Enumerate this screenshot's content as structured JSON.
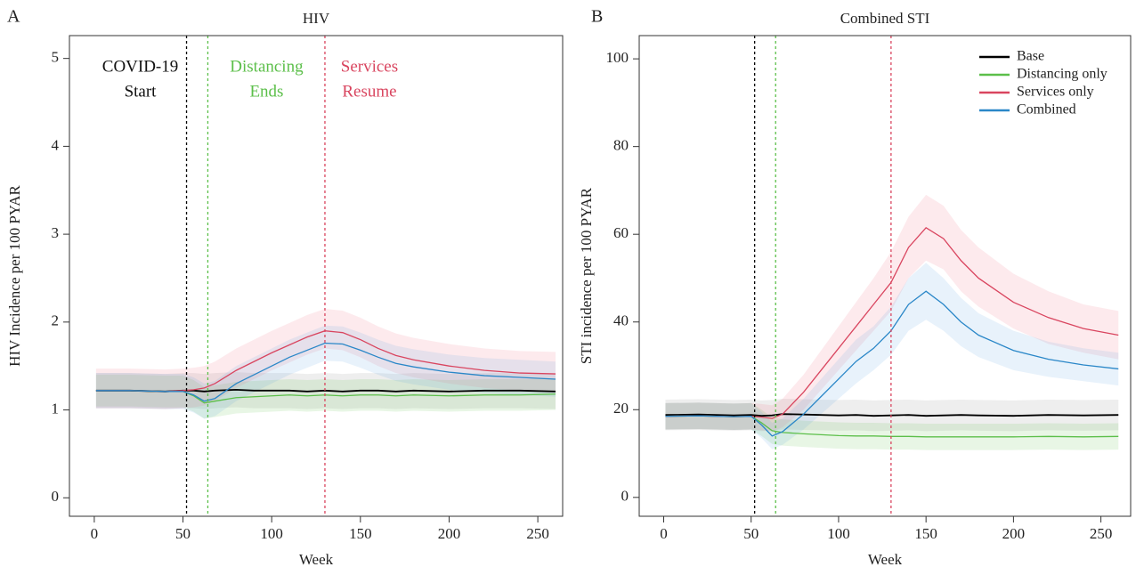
{
  "chart_data": [
    {
      "type": "line",
      "panel": "A",
      "title": "HIV",
      "xlabel": "Week",
      "ylabel": "HIV Incidence per 100 PYAR",
      "xlim": [
        -14,
        264
      ],
      "ylim": [
        -0.21,
        5.26
      ],
      "xticks": [
        0,
        50,
        100,
        150,
        200,
        250
      ],
      "yticks": [
        0,
        1,
        2,
        3,
        4,
        5
      ],
      "x": [
        1,
        20,
        40,
        50,
        56,
        62,
        68,
        80,
        90,
        100,
        110,
        120,
        130,
        140,
        150,
        160,
        170,
        180,
        200,
        220,
        240,
        260
      ],
      "series": [
        {
          "color": "#000000",
          "band_color": "#888888",
          "values": [
            1.22,
            1.22,
            1.21,
            1.22,
            1.22,
            1.21,
            1.22,
            1.23,
            1.22,
            1.22,
            1.22,
            1.21,
            1.22,
            1.21,
            1.22,
            1.22,
            1.21,
            1.22,
            1.21,
            1.22,
            1.22,
            1.21
          ],
          "lower": [
            1.02,
            1.02,
            1.01,
            1.02,
            1.02,
            1.01,
            1.02,
            1.03,
            1.02,
            1.02,
            1.02,
            1.01,
            1.02,
            1.01,
            1.02,
            1.02,
            1.01,
            1.02,
            1.01,
            1.02,
            1.02,
            1.01
          ],
          "upper": [
            1.42,
            1.42,
            1.41,
            1.42,
            1.42,
            1.41,
            1.42,
            1.43,
            1.42,
            1.42,
            1.42,
            1.41,
            1.42,
            1.41,
            1.42,
            1.42,
            1.41,
            1.42,
            1.41,
            1.42,
            1.42,
            1.41
          ]
        },
        {
          "color": "#5cbf4a",
          "band_color": "#5cbf4a",
          "values": [
            1.22,
            1.22,
            1.21,
            1.21,
            1.16,
            1.08,
            1.1,
            1.14,
            1.15,
            1.16,
            1.17,
            1.16,
            1.17,
            1.16,
            1.17,
            1.17,
            1.16,
            1.17,
            1.16,
            1.17,
            1.17,
            1.18
          ],
          "lower": [
            1.04,
            1.04,
            1.03,
            1.03,
            0.98,
            0.9,
            0.92,
            0.96,
            0.97,
            0.98,
            0.99,
            0.98,
            0.99,
            0.98,
            0.99,
            0.99,
            0.98,
            0.99,
            0.98,
            0.99,
            0.99,
            1.0
          ],
          "upper": [
            1.4,
            1.4,
            1.39,
            1.39,
            1.34,
            1.26,
            1.28,
            1.32,
            1.33,
            1.34,
            1.35,
            1.34,
            1.35,
            1.34,
            1.35,
            1.35,
            1.34,
            1.35,
            1.34,
            1.35,
            1.35,
            1.36
          ]
        },
        {
          "color": "#d9455f",
          "band_color": "#f06a80",
          "values": [
            1.22,
            1.22,
            1.21,
            1.22,
            1.23,
            1.25,
            1.3,
            1.45,
            1.55,
            1.65,
            1.74,
            1.83,
            1.9,
            1.88,
            1.8,
            1.7,
            1.62,
            1.57,
            1.5,
            1.45,
            1.42,
            1.41
          ],
          "lower": [
            1.02,
            1.02,
            1.01,
            1.02,
            1.03,
            1.05,
            1.1,
            1.25,
            1.35,
            1.45,
            1.54,
            1.63,
            1.7,
            1.68,
            1.6,
            1.5,
            1.42,
            1.37,
            1.3,
            1.25,
            1.22,
            1.21
          ],
          "upper": [
            1.47,
            1.47,
            1.46,
            1.47,
            1.48,
            1.5,
            1.55,
            1.7,
            1.8,
            1.9,
            1.99,
            2.08,
            2.15,
            2.13,
            2.05,
            1.95,
            1.87,
            1.82,
            1.75,
            1.7,
            1.67,
            1.66
          ]
        },
        {
          "color": "#2a87c8",
          "band_color": "#5aa6e0",
          "values": [
            1.22,
            1.22,
            1.21,
            1.21,
            1.17,
            1.1,
            1.13,
            1.3,
            1.4,
            1.5,
            1.6,
            1.68,
            1.76,
            1.75,
            1.68,
            1.6,
            1.53,
            1.49,
            1.43,
            1.39,
            1.37,
            1.35
          ],
          "lower": [
            1.02,
            1.02,
            1.01,
            1.01,
            0.97,
            0.9,
            0.93,
            1.1,
            1.2,
            1.3,
            1.4,
            1.48,
            1.56,
            1.55,
            1.48,
            1.4,
            1.33,
            1.29,
            1.23,
            1.19,
            1.17,
            1.15
          ],
          "upper": [
            1.42,
            1.42,
            1.41,
            1.41,
            1.37,
            1.3,
            1.33,
            1.5,
            1.6,
            1.7,
            1.8,
            1.88,
            1.96,
            1.95,
            1.88,
            1.8,
            1.73,
            1.69,
            1.63,
            1.59,
            1.57,
            1.55
          ]
        }
      ],
      "vlines": [
        {
          "x": 52,
          "color": "#000000",
          "label": [
            "COVID-19",
            "Start"
          ],
          "label_color": "#111111"
        },
        {
          "x": 64,
          "color": "#5cbf4a",
          "label": [
            "Distancing",
            "Ends"
          ],
          "label_color": "#5cbf4a"
        },
        {
          "x": 130,
          "color": "#d9455f",
          "label": [
            "Services",
            "Resume"
          ],
          "label_color": "#d9455f"
        }
      ]
    },
    {
      "type": "line",
      "panel": "B",
      "title": "Combined STI",
      "xlabel": "Week",
      "ylabel": "STI incidence per 100 PYAR",
      "xlim": [
        -14,
        267
      ],
      "ylim": [
        -4.3,
        105.3
      ],
      "xticks": [
        0,
        50,
        100,
        150,
        200,
        250
      ],
      "yticks": [
        0,
        20,
        40,
        60,
        80,
        100
      ],
      "legend": "top-right",
      "x": [
        1,
        20,
        40,
        50,
        56,
        62,
        68,
        80,
        90,
        100,
        110,
        120,
        130,
        140,
        150,
        160,
        170,
        180,
        200,
        220,
        240,
        260
      ],
      "series": [
        {
          "name": "Base",
          "color": "#000000",
          "band_color": "#888888",
          "values": [
            18.8,
            18.9,
            18.7,
            18.8,
            18.6,
            18.7,
            19,
            18.9,
            18.8,
            18.7,
            18.8,
            18.6,
            18.7,
            18.8,
            18.6,
            18.7,
            18.8,
            18.7,
            18.6,
            18.8,
            18.7,
            18.8
          ],
          "lower": [
            15.3,
            15.4,
            15.2,
            15.3,
            15.1,
            15.2,
            15.5,
            15.4,
            15.3,
            15.2,
            15.3,
            15.1,
            15.2,
            15.3,
            15.1,
            15.2,
            15.3,
            15.2,
            15.1,
            15.3,
            15.2,
            15.3
          ],
          "upper": [
            22.3,
            22.4,
            22.2,
            22.3,
            22.1,
            22.2,
            22.5,
            22.4,
            22.3,
            22.2,
            22.3,
            22.1,
            22.2,
            22.3,
            22.1,
            22.2,
            22.3,
            22.2,
            22.1,
            22.3,
            22.2,
            22.3
          ]
        },
        {
          "name": "Distancing only",
          "color": "#5cbf4a",
          "band_color": "#5cbf4a",
          "values": [
            18.5,
            18.6,
            18.4,
            18.5,
            17,
            15.2,
            14.8,
            14.5,
            14.3,
            14.1,
            14,
            14,
            13.9,
            13.9,
            13.8,
            13.8,
            13.8,
            13.8,
            13.8,
            13.9,
            13.8,
            13.9
          ],
          "lower": [
            15.5,
            15.6,
            15.4,
            15.5,
            14,
            12.2,
            11.8,
            11.5,
            11.3,
            11.1,
            11,
            11,
            10.9,
            10.9,
            10.8,
            10.8,
            10.8,
            10.8,
            10.8,
            10.9,
            10.8,
            10.9
          ],
          "upper": [
            21.5,
            21.6,
            21.4,
            21.5,
            20,
            18.2,
            17.8,
            17.5,
            17.3,
            17.1,
            17,
            17,
            16.9,
            16.9,
            16.8,
            16.8,
            16.8,
            16.8,
            16.8,
            16.9,
            16.8,
            16.9
          ]
        },
        {
          "name": "Services only",
          "color": "#d9455f",
          "band_color": "#f06a80",
          "values": [
            18.5,
            18.6,
            18.4,
            18.5,
            18.3,
            18,
            19,
            24,
            29,
            34,
            39,
            44,
            49,
            57,
            61.5,
            59,
            54,
            50,
            44.5,
            41,
            38.5,
            37
          ],
          "lower": [
            15.5,
            15.6,
            15.4,
            15.5,
            15.3,
            15,
            16,
            20,
            24.5,
            29,
            33.5,
            38,
            42.5,
            50,
            54,
            52,
            47,
            43.5,
            38.5,
            35,
            33,
            31.5
          ],
          "upper": [
            21.5,
            21.6,
            21.4,
            21.5,
            21.3,
            21,
            22.5,
            28,
            33.5,
            39,
            44.5,
            50,
            56,
            64,
            69,
            66.5,
            61,
            57,
            51,
            47,
            44,
            42.5
          ]
        },
        {
          "name": "Combined",
          "color": "#2a87c8",
          "band_color": "#5aa6e0",
          "values": [
            18.5,
            18.6,
            18.4,
            18.5,
            16.5,
            14,
            15,
            19,
            23,
            27,
            31,
            34,
            38,
            44,
            47,
            44,
            40,
            37,
            33.5,
            31.5,
            30.2,
            29.3
          ],
          "lower": [
            15.5,
            15.6,
            15.4,
            15.5,
            13.5,
            11,
            12,
            15.5,
            19,
            22.5,
            26,
            29,
            32.5,
            38,
            40.5,
            38,
            34.5,
            32,
            29,
            27.5,
            26.5,
            25.5
          ],
          "upper": [
            21.5,
            21.6,
            21.4,
            21.5,
            19.5,
            17,
            18,
            22.5,
            27,
            31.5,
            36,
            39,
            43.5,
            50,
            53.5,
            50,
            45.5,
            42,
            38,
            35.5,
            34,
            33
          ]
        }
      ],
      "vlines": [
        {
          "x": 52,
          "color": "#000000"
        },
        {
          "x": 64,
          "color": "#5cbf4a"
        },
        {
          "x": 130,
          "color": "#d9455f"
        }
      ]
    }
  ]
}
